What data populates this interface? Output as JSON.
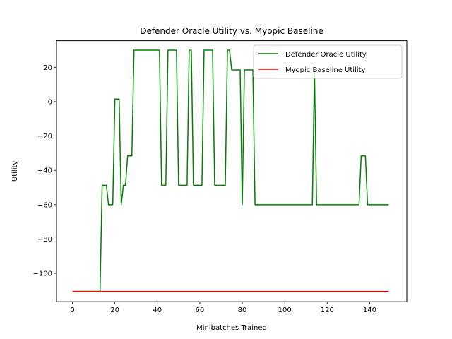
{
  "chart_data": {
    "type": "line",
    "title": "Defender Oracle Utility vs. Myopic Baseline",
    "xlabel": "Minibatches Trained",
    "ylabel": "Utility",
    "xlim": [
      -7.5,
      157.5
    ],
    "ylim": [
      -116.5,
      35.5
    ],
    "xticks": [
      0,
      20,
      40,
      60,
      80,
      100,
      120,
      140
    ],
    "yticks": [
      -100,
      -80,
      -60,
      -40,
      -20,
      0,
      20
    ],
    "grid": false,
    "legend_position": "upper right",
    "series": [
      {
        "name": "Defender Oracle Utility",
        "color": "#008000",
        "x": [
          0,
          13,
          14,
          15,
          16,
          17,
          18,
          19,
          20,
          21,
          22,
          23,
          24,
          25,
          26,
          27,
          28,
          29,
          30,
          40,
          41,
          42,
          43,
          44,
          45,
          46,
          47,
          48,
          49,
          50,
          51,
          52,
          53,
          54,
          55,
          56,
          57,
          58,
          59,
          60,
          61,
          62,
          63,
          64,
          65,
          66,
          67,
          68,
          69,
          70,
          71,
          72,
          73,
          74,
          75,
          76,
          77,
          78,
          79,
          80,
          81,
          82,
          83,
          84,
          85,
          86,
          87,
          113,
          114,
          115,
          116,
          117,
          135,
          136,
          137,
          138,
          139,
          149
        ],
        "y": [
          -110.5,
          -110.5,
          -48.7,
          -48.7,
          -48.7,
          -60,
          -60,
          -60,
          1.5,
          1.5,
          1.5,
          -60,
          -48.7,
          -48.7,
          -31.6,
          -31.6,
          -31.6,
          30,
          30,
          30,
          30,
          -48.7,
          -48.7,
          -48.7,
          30,
          30,
          30,
          30,
          30,
          -48.7,
          -48.7,
          -48.7,
          -48.7,
          -48.7,
          30,
          30,
          -48.7,
          -48.7,
          -48.7,
          -48.7,
          -48.7,
          30,
          30,
          30,
          30,
          30,
          -48.7,
          -48.7,
          -48.7,
          -48.7,
          -48.7,
          -48.7,
          30,
          30,
          18.5,
          18.5,
          18.5,
          18.5,
          18.5,
          -60,
          18.5,
          18.5,
          18.5,
          18.5,
          18.5,
          -60,
          -60,
          -60,
          18.5,
          -60,
          -60,
          -60,
          -60,
          -31.6,
          -31.6,
          -31.6,
          -60,
          -60
        ]
      },
      {
        "name": "Myopic Baseline Utility",
        "color": "#ff0000",
        "x": [
          0,
          149
        ],
        "y": [
          -110.5,
          -110.5
        ]
      }
    ]
  }
}
